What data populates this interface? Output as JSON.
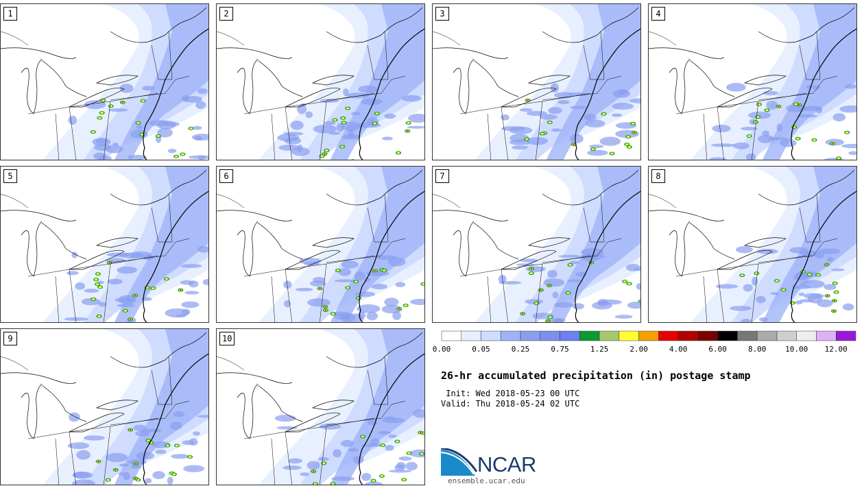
{
  "panels": [
    {
      "label": "1"
    },
    {
      "label": "2"
    },
    {
      "label": "3"
    },
    {
      "label": "4"
    },
    {
      "label": "5"
    },
    {
      "label": "6"
    },
    {
      "label": "7"
    },
    {
      "label": "8"
    },
    {
      "label": "9"
    },
    {
      "label": "10"
    }
  ],
  "colorbar": {
    "colors": [
      "#ffffff",
      "#e8f0ff",
      "#cfdcff",
      "#9fb4f7",
      "#8a9ef0",
      "#7d8fee",
      "#6f7ff0",
      "#0b9a30",
      "#a6c96f",
      "#ffff33",
      "#f5a000",
      "#e60000",
      "#b30000",
      "#7a0000",
      "#000000",
      "#777777",
      "#aaaaaa",
      "#cfcfcf",
      "#eeeeee",
      "#e0b0f5",
      "#9a19d8"
    ],
    "ticks": [
      "0.00",
      "0.05",
      "0.25",
      "0.75",
      "1.25",
      "2.00",
      "4.00",
      "6.00",
      "8.00",
      "10.00",
      "12.00"
    ]
  },
  "title": "26-hr accumulated precipitation (in) postage stamp",
  "init": " Init: Wed 2018-05-23 00 UTC",
  "valid": "Valid: Thu 2018-05-24 02 UTC",
  "logo": {
    "text": "NCAR",
    "site": "ensemble.ucar.edu",
    "color": "#1b3a6b",
    "accent": "#1a8ac9"
  }
}
